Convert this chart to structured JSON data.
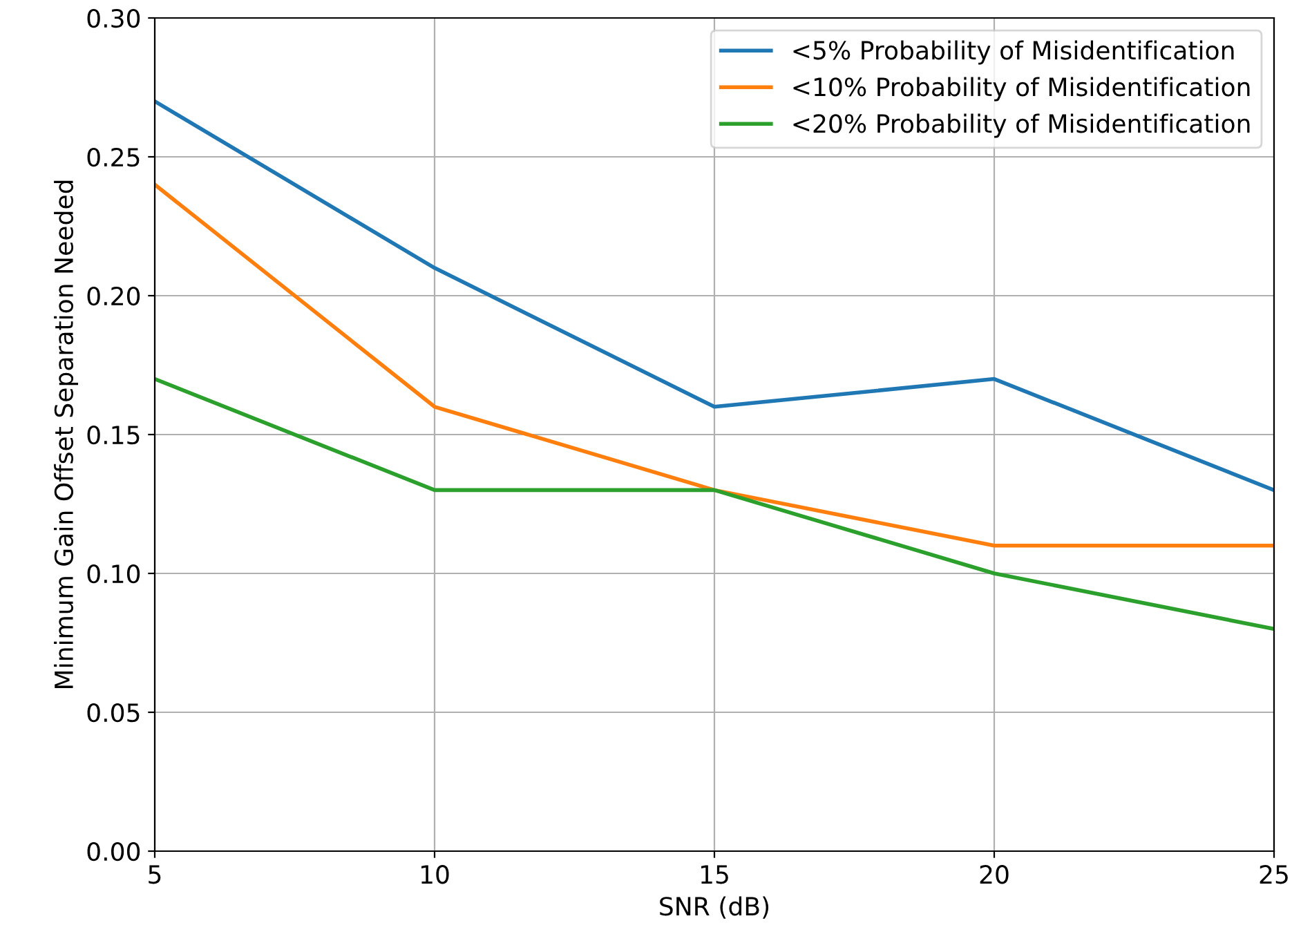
{
  "chart_data": {
    "type": "line",
    "xlabel": "SNR (dB)",
    "ylabel": "Minimum Gain Offset Separation Needed",
    "x": [
      5,
      10,
      15,
      20,
      25
    ],
    "series": [
      {
        "name": "<5% Probability of Misidentification",
        "color": "#1f77b4",
        "values": [
          0.27,
          0.21,
          0.16,
          0.17,
          0.13
        ]
      },
      {
        "name": "<10% Probability of Misidentification",
        "color": "#ff7f0e",
        "values": [
          0.24,
          0.16,
          0.13,
          0.11,
          0.11
        ]
      },
      {
        "name": "<20% Probability of Misidentification",
        "color": "#2ca02c",
        "values": [
          0.17,
          0.13,
          0.13,
          0.1,
          0.08
        ]
      }
    ],
    "xlim": [
      5,
      25
    ],
    "xticks": [
      5,
      10,
      15,
      20,
      25
    ],
    "ylim": [
      0,
      0.3
    ],
    "yticks": [
      {
        "value": 0,
        "label": "0.00"
      },
      {
        "value": 0.05,
        "label": "0.05"
      },
      {
        "value": 0.1,
        "label": "0.10"
      },
      {
        "value": 0.15,
        "label": "0.15"
      },
      {
        "value": 0.2,
        "label": "0.20"
      },
      {
        "value": 0.25,
        "label": "0.25"
      },
      {
        "value": 0.3,
        "label": "0.30"
      }
    ],
    "grid": true,
    "legend": "top right",
    "marker": "none",
    "line_style": "solid"
  }
}
